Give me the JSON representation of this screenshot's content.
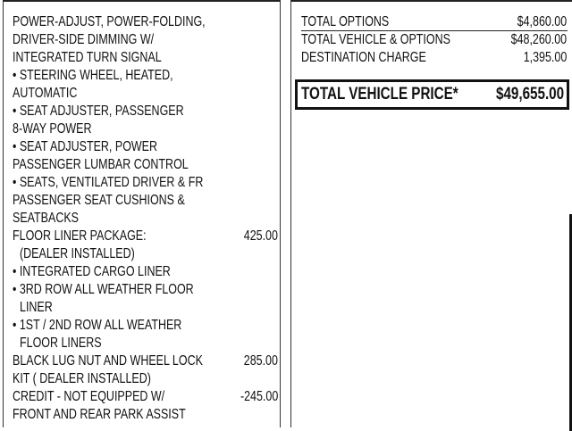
{
  "left_column": {
    "lines": [
      "POWER-ADJUST, POWER-FOLDING,",
      "DRIVER-SIDE DIMMING W/",
      "INTEGRATED TURN SIGNAL",
      "• STEERING WHEEL, HEATED,",
      "AUTOMATIC",
      "• SEAT ADJUSTER, PASSENGER",
      "8-WAY POWER",
      "• SEAT ADJUSTER, POWER",
      "PASSENGER LUMBAR CONTROL",
      "• SEATS, VENTILATED DRIVER & FR",
      "PASSENGER SEAT CUSHIONS &",
      "SEATBACKS",
      "FLOOR LINER PACKAGE:",
      "(DEALER INSTALLED)",
      "• INTEGRATED CARGO LINER",
      "• 3RD ROW ALL WEATHER FLOOR",
      "LINER",
      "• 1ST / 2ND ROW ALL WEATHER",
      "FLOOR LINERS",
      "BLACK LUG NUT AND WHEEL LOCK",
      "KIT ( DEALER INSTALLED)",
      "CREDIT - NOT EQUIPPED W/",
      "FRONT AND REAR PARK ASSIST"
    ],
    "prices": {
      "floor_liner": "425.00",
      "lug_nut": "285.00",
      "credit": "-245.00"
    }
  },
  "summary": {
    "rows": [
      {
        "label": "TOTAL OPTIONS",
        "value": "$4,860.00"
      },
      {
        "label": "TOTAL VEHICLE & OPTIONS",
        "value": "$48,260.00"
      },
      {
        "label": "DESTINATION CHARGE",
        "value": "1,395.00"
      }
    ],
    "total_label": "TOTAL VEHICLE PRICE*",
    "total_value": "$49,655.00"
  }
}
